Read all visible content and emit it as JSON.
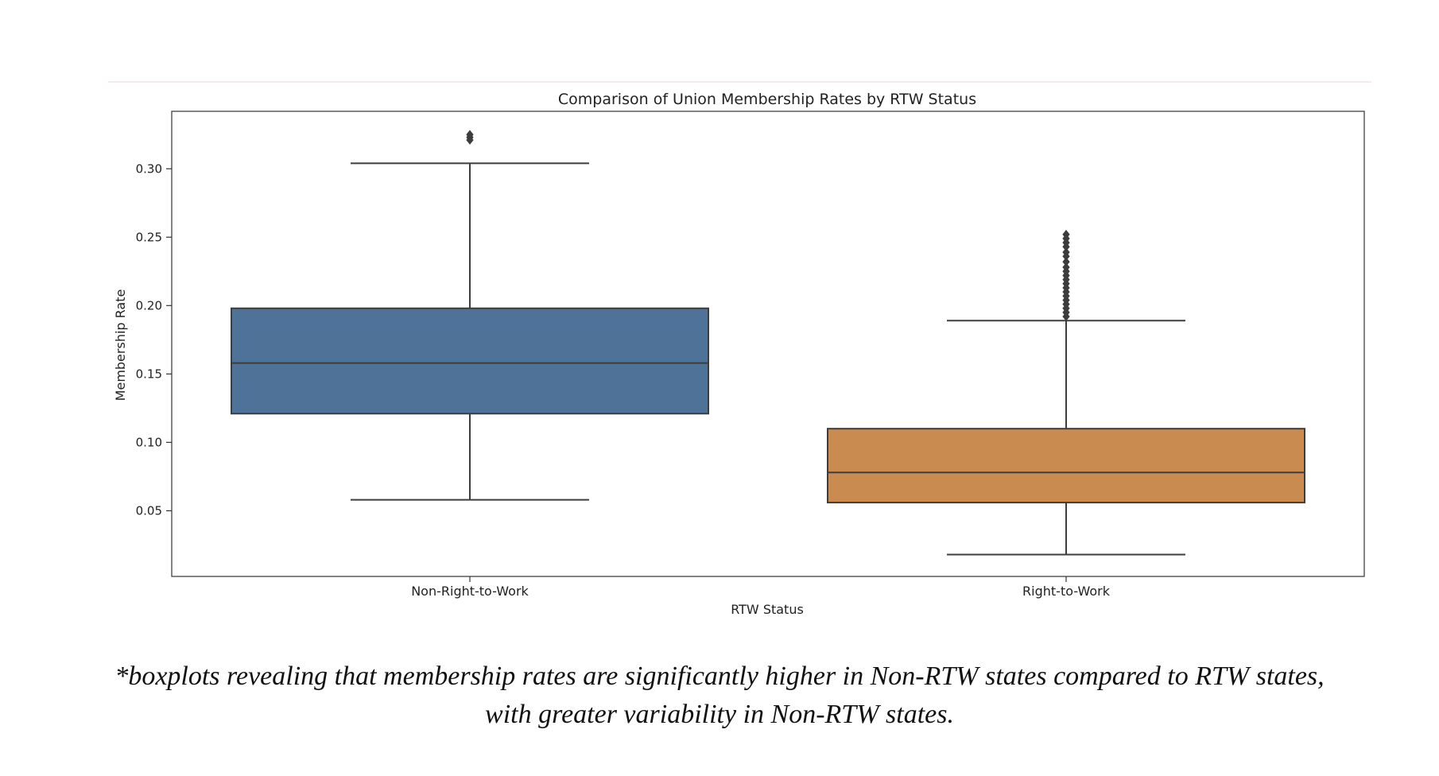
{
  "chart_data": {
    "type": "box",
    "title": "Comparison of Union Membership Rates by RTW Status",
    "xlabel": "RTW Status",
    "ylabel": "Membership Rate",
    "ylim": [
      0.002,
      0.342
    ],
    "yticks": [
      "0.05",
      "0.10",
      "0.15",
      "0.20",
      "0.25",
      "0.30"
    ],
    "grid": false,
    "categories": [
      "Non-Right-to-Work",
      "Right-to-Work"
    ],
    "boxes": [
      {
        "category": "Non-Right-to-Work",
        "color": "#4e7298",
        "whisker_low": 0.058,
        "q1": 0.121,
        "median": 0.158,
        "q3": 0.198,
        "whisker_high": 0.304,
        "outliers": [
          0.321,
          0.323,
          0.325
        ]
      },
      {
        "category": "Right-to-Work",
        "color": "#c98b50",
        "whisker_low": 0.018,
        "q1": 0.056,
        "median": 0.078,
        "q3": 0.11,
        "whisker_high": 0.189,
        "outliers": [
          0.192,
          0.195,
          0.198,
          0.201,
          0.204,
          0.207,
          0.21,
          0.213,
          0.216,
          0.219,
          0.222,
          0.225,
          0.228,
          0.232,
          0.236,
          0.239,
          0.243,
          0.246,
          0.249,
          0.252
        ]
      }
    ]
  },
  "caption": {
    "line1": "*boxplots revealing that membership rates are significantly higher in Non-RTW states compared to RTW states,",
    "line2": "with greater variability in Non-RTW states."
  }
}
